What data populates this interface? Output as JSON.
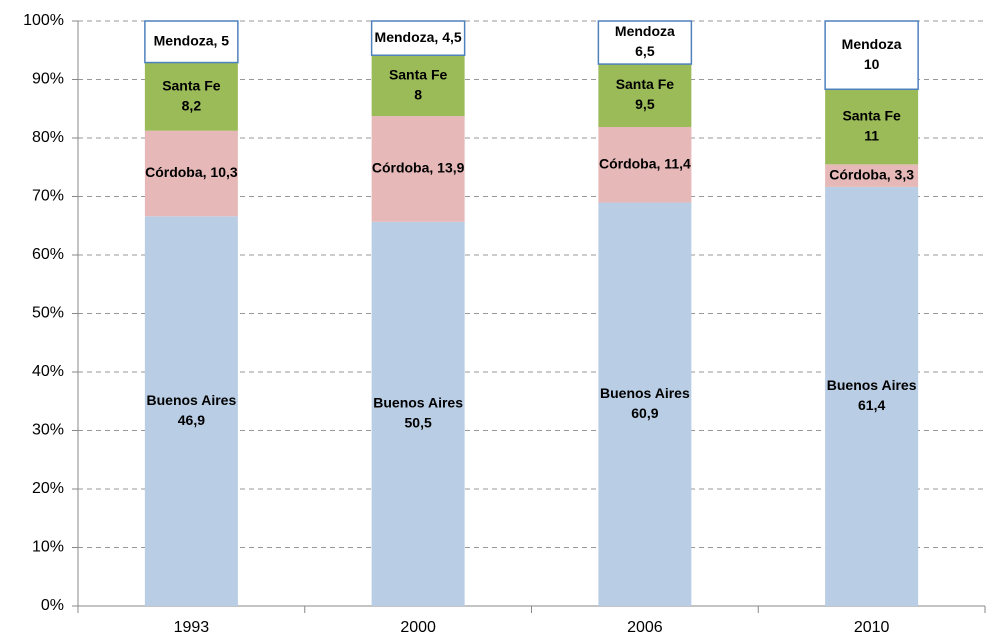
{
  "chart_data": {
    "type": "stacked_percent_bar",
    "categories": [
      "1993",
      "2000",
      "2006",
      "2010"
    ],
    "series": [
      {
        "name": "Buenos Aires",
        "color": "#b9cde5",
        "values": [
          46.9,
          50.5,
          60.9,
          61.4
        ],
        "value_labels": [
          [
            "Buenos Aires",
            "46,9"
          ],
          [
            "Buenos Aires",
            "50,5"
          ],
          [
            "Buenos Aires",
            "60,9"
          ],
          [
            "Buenos Aires",
            "61,4"
          ]
        ]
      },
      {
        "name": "Córdoba",
        "color": "#e6b9b8",
        "values": [
          10.3,
          13.9,
          11.4,
          3.3
        ],
        "value_labels": [
          [
            "Córdoba, 10,3"
          ],
          [
            "Córdoba, 13,9"
          ],
          [
            "Córdoba, 11,4"
          ],
          [
            "Córdoba, 3,3"
          ]
        ]
      },
      {
        "name": "Santa Fe",
        "color": "#9bbb59",
        "values": [
          8.2,
          8,
          9.5,
          11
        ],
        "value_labels": [
          [
            "Santa Fe",
            "8,2"
          ],
          [
            "Santa Fe",
            "8"
          ],
          [
            "Santa Fe",
            "9,5"
          ],
          [
            "Santa Fe",
            "11"
          ]
        ]
      },
      {
        "name": "Mendoza",
        "color": "#ffffff",
        "stroke": "#4f81bd",
        "values": [
          5,
          4.5,
          6.5,
          10
        ],
        "value_labels": [
          [
            "Mendoza, 5"
          ],
          [
            "Mendoza, 4,5"
          ],
          [
            "Mendoza",
            "6,5"
          ],
          [
            "Mendoza",
            "10"
          ]
        ]
      }
    ],
    "ylim": [
      0,
      100
    ],
    "yticks": [
      {
        "value": 0,
        "label": "0%"
      },
      {
        "value": 10,
        "label": "10%"
      },
      {
        "value": 20,
        "label": "20%"
      },
      {
        "value": 30,
        "label": "30%"
      },
      {
        "value": 40,
        "label": "40%"
      },
      {
        "value": 50,
        "label": "50%"
      },
      {
        "value": 60,
        "label": "60%"
      },
      {
        "value": 70,
        "label": "70%"
      },
      {
        "value": 80,
        "label": "80%"
      },
      {
        "value": 90,
        "label": "90%"
      },
      {
        "value": 100,
        "label": "100%"
      }
    ],
    "grid": true
  }
}
